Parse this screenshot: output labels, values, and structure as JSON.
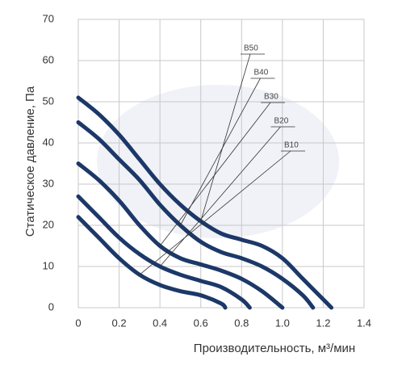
{
  "chart_data": {
    "type": "line",
    "x_label": "Производительность, м³/мин",
    "y_label": "Статическое давление, Па",
    "xlim": [
      0,
      1.4
    ],
    "xticks": [
      0,
      0.2,
      0.4,
      0.6,
      0.8,
      {
        "value": 1,
        "label": "1.0"
      },
      1.2,
      1.4
    ],
    "ylim": [
      0,
      70
    ],
    "yticks": [
      0,
      10,
      20,
      30,
      40,
      50,
      60,
      70
    ],
    "grid": true,
    "series": [
      {
        "name": "B50",
        "color": "#1c3868",
        "x": [
          0,
          0.1,
          0.2,
          0.3,
          0.4,
          0.5,
          0.6,
          0.7,
          0.8,
          0.9,
          1.0,
          1.1,
          1.2,
          1.24
        ],
        "values": [
          51,
          47,
          42,
          36,
          30,
          25,
          21,
          18,
          16.5,
          15,
          12,
          7,
          2,
          0
        ]
      },
      {
        "name": "B40",
        "color": "#1c3868",
        "x": [
          0,
          0.1,
          0.2,
          0.3,
          0.4,
          0.5,
          0.6,
          0.7,
          0.8,
          0.9,
          1.0,
          1.1,
          1.15
        ],
        "values": [
          45,
          41,
          36,
          31,
          25,
          20,
          16,
          13.5,
          12,
          10,
          7,
          3,
          0
        ]
      },
      {
        "name": "B30",
        "color": "#1c3868",
        "x": [
          0,
          0.1,
          0.2,
          0.3,
          0.4,
          0.5,
          0.6,
          0.7,
          0.8,
          0.9,
          1.0
        ],
        "values": [
          35,
          31,
          26,
          20,
          15,
          12,
          10.5,
          9,
          7,
          4,
          0
        ]
      },
      {
        "name": "B20",
        "color": "#1c3868",
        "x": [
          0,
          0.1,
          0.2,
          0.3,
          0.4,
          0.5,
          0.6,
          0.7,
          0.8,
          0.84
        ],
        "values": [
          27,
          22,
          17,
          13,
          10,
          8,
          6.5,
          5,
          2,
          0
        ]
      },
      {
        "name": "B10",
        "color": "#1c3868",
        "x": [
          0,
          0.1,
          0.2,
          0.3,
          0.4,
          0.5,
          0.6,
          0.7,
          0.72
        ],
        "values": [
          22,
          17,
          12,
          8,
          5.5,
          4,
          3,
          1,
          0
        ]
      }
    ]
  }
}
